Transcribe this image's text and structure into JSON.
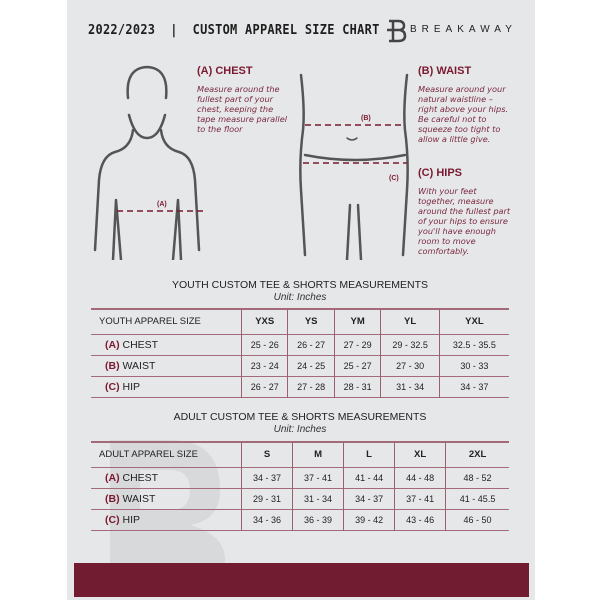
{
  "header": {
    "title": "2022/2023  |  CUSTOM APPAREL SIZE CHART",
    "brand": "BREAKAWAY"
  },
  "colors": {
    "accent": "#721c32",
    "page": "#e6e7e9",
    "text": "#222222"
  },
  "guide": {
    "chest": {
      "heading": "(A) CHEST",
      "text": "Measure around the fullest part of your chest, keeping the tape measure parallel to the floor",
      "marker": "(A)"
    },
    "waist": {
      "heading": "(B) WAIST",
      "text": "Measure around your natural waistline – right above your hips. Be careful not to squeeze too tight to allow a little give.",
      "marker": "(B)"
    },
    "hips": {
      "heading": "(C) HIPS",
      "text": "With your feet together, measure around the fullest part of your hips to ensure you'll have enough room to move comfortably.",
      "marker": "(C)"
    }
  },
  "youth": {
    "title": "YOUTH CUSTOM TEE & SHORTS MEASUREMENTS",
    "unit": "Unit: Inches",
    "header": [
      "YOUTH APPAREL SIZE",
      "YXS",
      "YS",
      "YM",
      "YL",
      "YXL"
    ],
    "rows": [
      {
        "letter": "(A)",
        "label": "CHEST",
        "values": [
          "25 - 26",
          "26 - 27",
          "27 - 29",
          "29 - 32.5",
          "32.5 - 35.5"
        ]
      },
      {
        "letter": "(B)",
        "label": "WAIST",
        "values": [
          "23 - 24",
          "24 - 25",
          "25 - 27",
          "27 - 30",
          "30 - 33"
        ]
      },
      {
        "letter": "(C)",
        "label": "HIP",
        "values": [
          "26 - 27",
          "27 - 28",
          "28 - 31",
          "31 - 34",
          "34 - 37"
        ]
      }
    ]
  },
  "adult": {
    "title": "ADULT CUSTOM TEE & SHORTS MEASUREMENTS",
    "unit": "Unit: Inches",
    "header": [
      "ADULT APPAREL SIZE",
      "S",
      "M",
      "L",
      "XL",
      "2XL"
    ],
    "rows": [
      {
        "letter": "(A)",
        "label": "CHEST",
        "values": [
          "34 - 37",
          "37 - 41",
          "41 - 44",
          "44 - 48",
          "48 - 52"
        ]
      },
      {
        "letter": "(B)",
        "label": "WAIST",
        "values": [
          "29 - 31",
          "31 - 34",
          "34 - 37",
          "37 - 41",
          "41 - 45.5"
        ]
      },
      {
        "letter": "(C)",
        "label": "HIP",
        "values": [
          "34 - 36",
          "36 - 39",
          "39 - 42",
          "43 - 46",
          "46 - 50"
        ]
      }
    ]
  }
}
